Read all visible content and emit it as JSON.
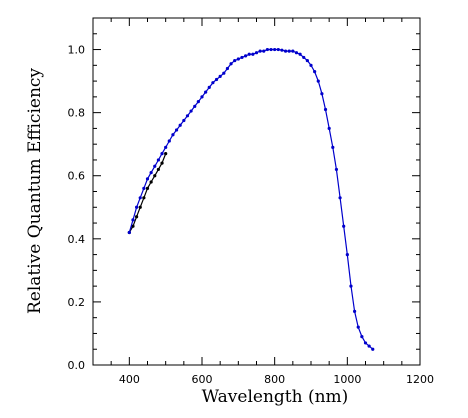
{
  "chart_data": {
    "type": "line",
    "xlabel": "Wavelength (nm)",
    "ylabel": "Relative Quantum Efficiency",
    "xlim": [
      300,
      1200
    ],
    "ylim": [
      0.0,
      1.1
    ],
    "x_ticks": [
      400,
      600,
      800,
      1000,
      1200
    ],
    "y_ticks": [
      0.0,
      0.2,
      0.4,
      0.6,
      0.8,
      1.0
    ],
    "x_tick_labels": [
      "400",
      "600",
      "800",
      "1000",
      "1200"
    ],
    "y_tick_labels": [
      "0.0",
      "0.2",
      "0.4",
      "0.6",
      "0.8",
      "1.0"
    ],
    "grid": false,
    "series": [
      {
        "color": "#000000",
        "x": [
          400,
          410,
          420,
          430,
          440,
          450,
          460,
          470,
          480,
          490,
          500
        ],
        "y": [
          0.42,
          0.44,
          0.47,
          0.5,
          0.53,
          0.56,
          0.58,
          0.6,
          0.62,
          0.64,
          0.67
        ]
      },
      {
        "color": "#0000cc",
        "x": [
          400,
          410,
          420,
          430,
          440,
          450,
          460,
          470,
          480,
          490,
          500,
          510,
          520,
          530,
          540,
          550,
          560,
          570,
          580,
          590,
          600,
          610,
          620,
          630,
          640,
          650,
          660,
          670,
          680,
          690,
          700,
          710,
          720,
          730,
          740,
          750,
          760,
          770,
          780,
          790,
          800,
          810,
          820,
          830,
          840,
          850,
          860,
          870,
          880,
          890,
          900,
          910,
          920,
          930,
          940,
          950,
          960,
          970,
          980,
          990,
          1000,
          1010,
          1020,
          1030,
          1040,
          1050,
          1060,
          1070
        ],
        "y": [
          0.42,
          0.46,
          0.5,
          0.53,
          0.56,
          0.59,
          0.61,
          0.63,
          0.65,
          0.67,
          0.69,
          0.71,
          0.73,
          0.745,
          0.76,
          0.775,
          0.79,
          0.805,
          0.82,
          0.835,
          0.85,
          0.865,
          0.88,
          0.895,
          0.905,
          0.915,
          0.925,
          0.94,
          0.955,
          0.965,
          0.97,
          0.975,
          0.98,
          0.985,
          0.985,
          0.99,
          0.995,
          0.995,
          1.0,
          1.0,
          1.0,
          1.0,
          0.998,
          0.995,
          0.995,
          0.995,
          0.99,
          0.985,
          0.975,
          0.965,
          0.95,
          0.93,
          0.9,
          0.86,
          0.81,
          0.75,
          0.69,
          0.62,
          0.53,
          0.44,
          0.35,
          0.25,
          0.17,
          0.12,
          0.09,
          0.07,
          0.06,
          0.05
        ]
      }
    ]
  }
}
